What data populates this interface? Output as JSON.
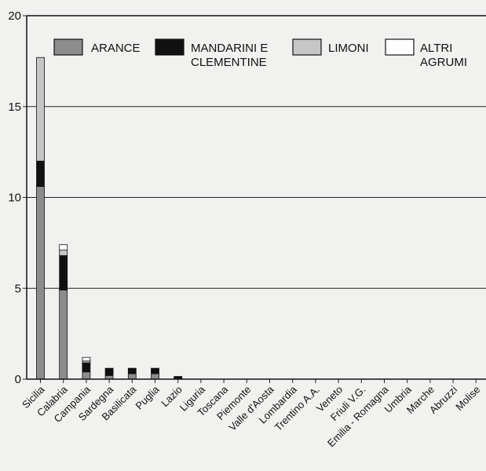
{
  "chart_data": {
    "type": "bar",
    "stacked": true,
    "categories": [
      "Sicilia",
      "Calabria",
      "Campania",
      "Sardegna",
      "Basilicata",
      "Puglia",
      "Lazio",
      "Liguria",
      "Toscana",
      "Piemonte",
      "Valle d'Aosta",
      "Lombardia",
      "Trentino A.A.",
      "Veneto",
      "Friuli V.G.",
      "Emilia - Romagna",
      "Umbria",
      "Marche",
      "Abruzzi",
      "Molise"
    ],
    "series": [
      {
        "name": "ARANCE",
        "color": "#8c8c8c",
        "values": [
          10.6,
          4.9,
          0.4,
          0.2,
          0.3,
          0.3,
          0.05,
          0,
          0,
          0,
          0,
          0,
          0,
          0,
          0,
          0,
          0,
          0,
          0,
          0
        ]
      },
      {
        "name": "MANDARINI E CLEMENTINE",
        "color": "#111111",
        "values": [
          1.4,
          1.9,
          0.5,
          0.4,
          0.3,
          0.3,
          0.1,
          0,
          0,
          0,
          0,
          0,
          0,
          0,
          0,
          0,
          0,
          0,
          0,
          0
        ]
      },
      {
        "name": "LIMONI",
        "color": "#c6c6c6",
        "values": [
          5.7,
          0.3,
          0.1,
          0,
          0,
          0,
          0,
          0,
          0,
          0,
          0,
          0,
          0,
          0,
          0,
          0,
          0,
          0,
          0,
          0
        ]
      },
      {
        "name": "ALTRI AGRUMI",
        "color": "#ffffff",
        "values": [
          0,
          0.3,
          0.2,
          0,
          0,
          0,
          0,
          0,
          0,
          0,
          0,
          0,
          0,
          0,
          0,
          0,
          0,
          0,
          0,
          0
        ]
      }
    ],
    "legend_labels": [
      [
        "ARANCE"
      ],
      [
        "MANDARINI E",
        "CLEMENTINE"
      ],
      [
        "LIMONI"
      ],
      [
        "ALTRI",
        "AGRUMI"
      ]
    ],
    "yticks": [
      0,
      5,
      10,
      15,
      20
    ],
    "ylim": [
      0,
      20
    ],
    "grid": true,
    "legend_position": "top"
  }
}
